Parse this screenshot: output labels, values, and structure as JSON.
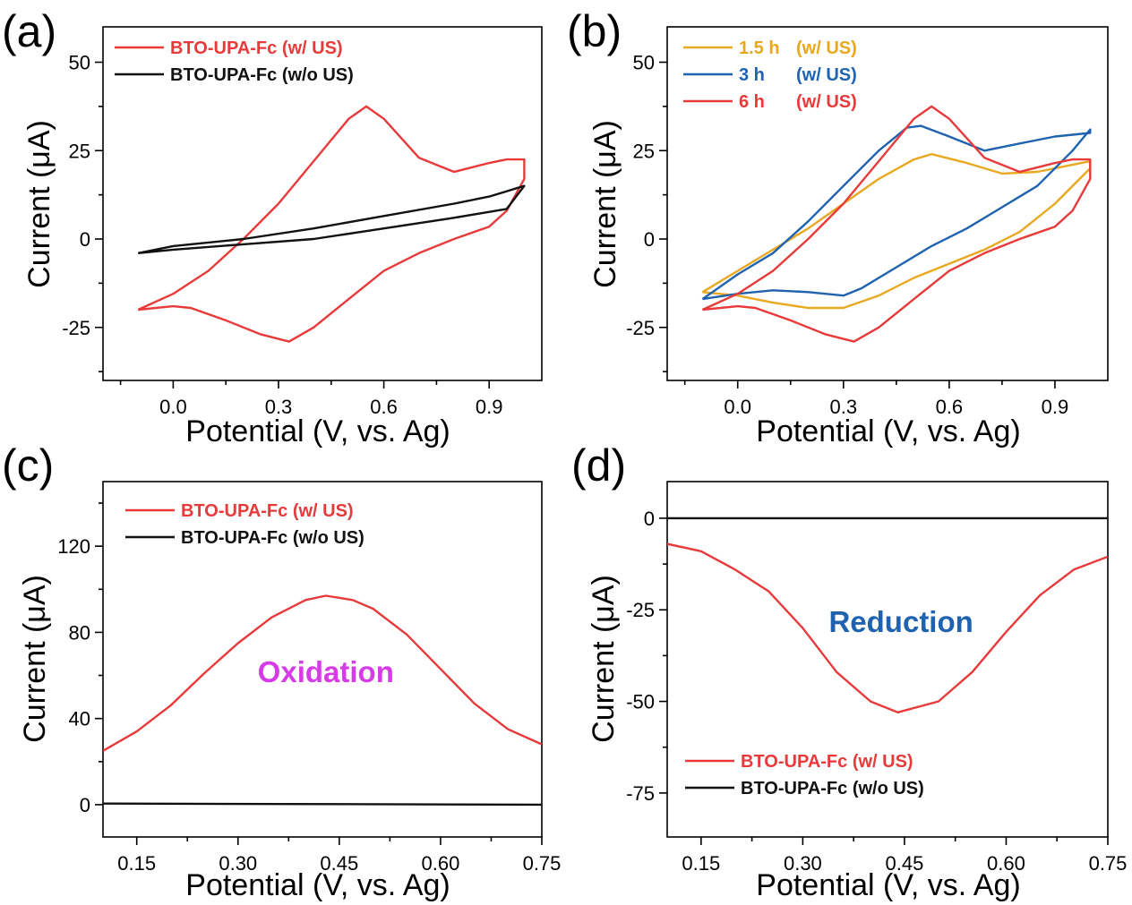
{
  "chart_data": [
    {
      "panel": "(a)",
      "type": "line",
      "xlabel": "Potential (V, vs. Ag)",
      "ylabel": "Current (μA)",
      "xlim": [
        -0.2,
        1.05
      ],
      "ylim": [
        -40,
        60
      ],
      "xticks": [
        0.0,
        0.3,
        0.6,
        0.9
      ],
      "xtick_labels": [
        "0.0",
        "0.3",
        "0.6",
        "0.9"
      ],
      "yticks": [
        -25,
        0,
        25,
        50
      ],
      "ytick_labels": [
        "-25",
        "0",
        "25",
        "50"
      ],
      "legend_position": "top-left",
      "series": [
        {
          "name": "BTO-UPA-Fc (w/ US)",
          "color": "#e83a3a",
          "points": [
            [
              -0.1,
              -20
            ],
            [
              0.0,
              -15.5
            ],
            [
              0.1,
              -9
            ],
            [
              0.2,
              0
            ],
            [
              0.3,
              10
            ],
            [
              0.4,
              22
            ],
            [
              0.5,
              34
            ],
            [
              0.55,
              37.5
            ],
            [
              0.6,
              34
            ],
            [
              0.7,
              23
            ],
            [
              0.8,
              19
            ],
            [
              0.9,
              21.5
            ],
            [
              0.95,
              22.5
            ],
            [
              1.0,
              22.5
            ],
            [
              1.0,
              17
            ],
            [
              0.95,
              8
            ],
            [
              0.9,
              3.5
            ],
            [
              0.8,
              0
            ],
            [
              0.7,
              -4
            ],
            [
              0.6,
              -9
            ],
            [
              0.5,
              -17
            ],
            [
              0.4,
              -25
            ],
            [
              0.33,
              -29
            ],
            [
              0.25,
              -27
            ],
            [
              0.15,
              -23
            ],
            [
              0.05,
              -19.5
            ],
            [
              0.0,
              -19
            ],
            [
              -0.1,
              -20
            ]
          ]
        },
        {
          "name": "BTO-UPA-Fc (w/o US)",
          "color": "#111111",
          "points": [
            [
              -0.1,
              -4
            ],
            [
              0.0,
              -2
            ],
            [
              0.2,
              0
            ],
            [
              0.4,
              3
            ],
            [
              0.6,
              6.5
            ],
            [
              0.8,
              10
            ],
            [
              0.9,
              12
            ],
            [
              1.0,
              15
            ],
            [
              0.95,
              8.5
            ],
            [
              0.8,
              6
            ],
            [
              0.6,
              3
            ],
            [
              0.4,
              0
            ],
            [
              0.2,
              -1.5
            ],
            [
              0.0,
              -3
            ],
            [
              -0.1,
              -4
            ]
          ]
        }
      ]
    },
    {
      "panel": "(b)",
      "type": "line",
      "xlabel": "Potential (V, vs. Ag)",
      "ylabel": "Current (μA)",
      "xlim": [
        -0.2,
        1.05
      ],
      "ylim": [
        -40,
        60
      ],
      "xticks": [
        0.0,
        0.3,
        0.6,
        0.9
      ],
      "xtick_labels": [
        "0.0",
        "0.3",
        "0.6",
        "0.9"
      ],
      "yticks": [
        -25,
        0,
        25,
        50
      ],
      "ytick_labels": [
        "-25",
        "0",
        "25",
        "50"
      ],
      "legend_position": "top-left",
      "series": [
        {
          "name_parts": [
            "1.5 h",
            "(w/ US)"
          ],
          "color": "#e8a820",
          "points": [
            [
              -0.1,
              -15
            ],
            [
              0.0,
              -9
            ],
            [
              0.1,
              -3
            ],
            [
              0.2,
              3
            ],
            [
              0.3,
              10
            ],
            [
              0.4,
              17
            ],
            [
              0.5,
              22.5
            ],
            [
              0.55,
              24
            ],
            [
              0.65,
              21.5
            ],
            [
              0.75,
              18.5
            ],
            [
              0.85,
              19
            ],
            [
              0.95,
              21
            ],
            [
              1.0,
              22
            ],
            [
              1.0,
              20
            ],
            [
              0.9,
              10
            ],
            [
              0.8,
              2
            ],
            [
              0.7,
              -3
            ],
            [
              0.6,
              -7
            ],
            [
              0.5,
              -11
            ],
            [
              0.4,
              -16
            ],
            [
              0.3,
              -19.5
            ],
            [
              0.2,
              -19.5
            ],
            [
              0.1,
              -18
            ],
            [
              0.0,
              -16
            ],
            [
              -0.1,
              -15
            ]
          ]
        },
        {
          "name_parts": [
            "3 h",
            "(w/ US)"
          ],
          "color": "#1f63b0",
          "points": [
            [
              -0.1,
              -17
            ],
            [
              0.0,
              -10
            ],
            [
              0.1,
              -4
            ],
            [
              0.2,
              5
            ],
            [
              0.3,
              15
            ],
            [
              0.4,
              25
            ],
            [
              0.48,
              31.5
            ],
            [
              0.52,
              32
            ],
            [
              0.6,
              29
            ],
            [
              0.7,
              25
            ],
            [
              0.8,
              27
            ],
            [
              0.9,
              29
            ],
            [
              1.0,
              30
            ],
            [
              1.0,
              31
            ],
            [
              0.95,
              25
            ],
            [
              0.85,
              15
            ],
            [
              0.75,
              9
            ],
            [
              0.65,
              3
            ],
            [
              0.55,
              -2
            ],
            [
              0.45,
              -8
            ],
            [
              0.35,
              -14
            ],
            [
              0.3,
              -16
            ],
            [
              0.2,
              -15
            ],
            [
              0.1,
              -14.5
            ],
            [
              0.0,
              -15.5
            ],
            [
              -0.1,
              -17
            ]
          ]
        },
        {
          "name_parts": [
            "6 h",
            "(w/ US)"
          ],
          "color": "#e83a3a",
          "points": [
            [
              -0.1,
              -20
            ],
            [
              0.0,
              -15.5
            ],
            [
              0.1,
              -9
            ],
            [
              0.2,
              0
            ],
            [
              0.3,
              10
            ],
            [
              0.4,
              22
            ],
            [
              0.5,
              34
            ],
            [
              0.55,
              37.5
            ],
            [
              0.6,
              34
            ],
            [
              0.7,
              23
            ],
            [
              0.8,
              19
            ],
            [
              0.9,
              21.5
            ],
            [
              0.95,
              22.5
            ],
            [
              1.0,
              22.5
            ],
            [
              1.0,
              17
            ],
            [
              0.95,
              8
            ],
            [
              0.9,
              3.5
            ],
            [
              0.8,
              0
            ],
            [
              0.7,
              -4
            ],
            [
              0.6,
              -9
            ],
            [
              0.5,
              -17
            ],
            [
              0.4,
              -25
            ],
            [
              0.33,
              -29
            ],
            [
              0.25,
              -27
            ],
            [
              0.15,
              -23
            ],
            [
              0.05,
              -19.5
            ],
            [
              0.0,
              -19
            ],
            [
              -0.1,
              -20
            ]
          ]
        }
      ]
    },
    {
      "panel": "(c)",
      "type": "line",
      "xlabel": "Potential (V, vs. Ag)",
      "ylabel": "Current (μA)",
      "xlim": [
        0.1,
        0.75
      ],
      "ylim": [
        -15,
        150
      ],
      "xticks": [
        0.15,
        0.3,
        0.45,
        0.6,
        0.75
      ],
      "xtick_labels": [
        "0.15",
        "0.30",
        "0.45",
        "0.60",
        "0.75"
      ],
      "yticks": [
        0,
        40,
        80,
        120
      ],
      "ytick_labels": [
        "0",
        "40",
        "80",
        "120"
      ],
      "legend_position": "top-left",
      "annotation": {
        "text": "Oxidation",
        "color": "#d63be8",
        "x": 0.43,
        "y": 57
      },
      "series": [
        {
          "name": "BTO-UPA-Fc (w/ US)",
          "color": "#e83a3a",
          "points": [
            [
              0.1,
              25
            ],
            [
              0.15,
              34
            ],
            [
              0.2,
              46
            ],
            [
              0.25,
              61
            ],
            [
              0.3,
              75
            ],
            [
              0.35,
              87
            ],
            [
              0.4,
              95
            ],
            [
              0.43,
              97
            ],
            [
              0.47,
              95
            ],
            [
              0.5,
              91
            ],
            [
              0.55,
              79
            ],
            [
              0.6,
              63
            ],
            [
              0.65,
              47
            ],
            [
              0.7,
              35
            ],
            [
              0.75,
              28
            ]
          ]
        },
        {
          "name": "BTO-UPA-Fc (w/o US)",
          "color": "#111111",
          "points": [
            [
              0.1,
              0.5
            ],
            [
              0.75,
              0
            ]
          ]
        }
      ]
    },
    {
      "panel": "(d)",
      "type": "line",
      "xlabel": "Potential (V, vs. Ag)",
      "ylabel": "Current (μA)",
      "xlim": [
        0.1,
        0.75
      ],
      "ylim": [
        -87,
        10
      ],
      "xticks": [
        0.15,
        0.3,
        0.45,
        0.6,
        0.75
      ],
      "xtick_labels": [
        "0.15",
        "0.30",
        "0.45",
        "0.60",
        "0.75"
      ],
      "yticks": [
        -75,
        -50,
        -25,
        0
      ],
      "ytick_labels": [
        "-75",
        "-50",
        "-25",
        "0"
      ],
      "legend_position": "bottom-left",
      "annotation": {
        "text": "Reduction",
        "color": "#1f63b0",
        "x": 0.445,
        "y": -31
      },
      "series": [
        {
          "name": "BTO-UPA-Fc (w/ US)",
          "color": "#e83a3a",
          "points": [
            [
              0.1,
              -7
            ],
            [
              0.15,
              -9
            ],
            [
              0.2,
              -14
            ],
            [
              0.25,
              -20
            ],
            [
              0.3,
              -30
            ],
            [
              0.35,
              -42
            ],
            [
              0.4,
              -50
            ],
            [
              0.44,
              -53
            ],
            [
              0.5,
              -50
            ],
            [
              0.55,
              -42
            ],
            [
              0.6,
              -31
            ],
            [
              0.65,
              -21
            ],
            [
              0.7,
              -14
            ],
            [
              0.75,
              -10.5
            ]
          ]
        },
        {
          "name": "BTO-UPA-Fc (w/o US)",
          "color": "#111111",
          "points": [
            [
              0.1,
              0
            ],
            [
              0.75,
              0
            ]
          ]
        }
      ]
    }
  ]
}
